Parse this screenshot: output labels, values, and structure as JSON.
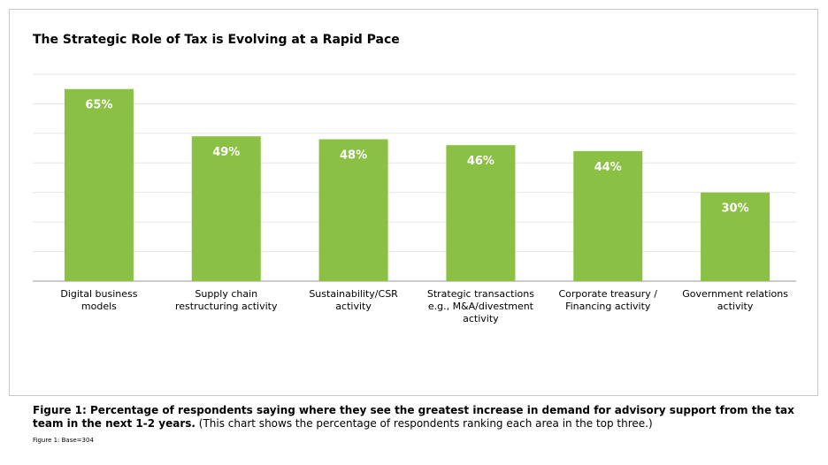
{
  "colors": {
    "bar": "#8ac043",
    "grid": "#e6e6e6",
    "axis": "#9a9a9a",
    "label_inside": "#ffffff",
    "text": "#000000"
  },
  "chart_data": {
    "type": "bar",
    "title": "The Strategic Role of Tax is Evolving at a Rapid Pace",
    "categories": [
      [
        "Digital business",
        "models"
      ],
      [
        "Supply chain",
        "restructuring activity"
      ],
      [
        "Sustainability/CSR",
        "activity"
      ],
      [
        "Strategic transactions",
        "e.g., M&A/divestment",
        "activity"
      ],
      [
        "Corporate treasury /",
        "Financing activity"
      ],
      [
        "Government relations",
        "activity"
      ]
    ],
    "values": [
      65,
      49,
      48,
      46,
      44,
      30
    ],
    "data_labels": [
      "65%",
      "49%",
      "48%",
      "46%",
      "44%",
      "30%"
    ],
    "ylim": [
      0,
      70
    ],
    "gridlines": true,
    "xlabel": "",
    "ylabel": ""
  },
  "caption": {
    "bold": "Figure 1: Percentage of respondents saying where they see the greatest increase in demand for advisory support from the tax team in the next 1-2 years.",
    "normal": " (This chart shows the percentage of respondents ranking each area in the top three.)"
  },
  "base_note": "Figure 1: Base=304"
}
